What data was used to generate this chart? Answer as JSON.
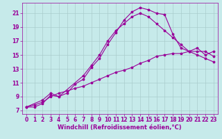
{
  "xlabel": "Windchill (Refroidissement éolien,°C)",
  "xlim": [
    -0.5,
    23.5
  ],
  "ylim": [
    6.5,
    22.5
  ],
  "xticks": [
    0,
    1,
    2,
    3,
    4,
    5,
    6,
    7,
    8,
    9,
    10,
    11,
    12,
    13,
    14,
    15,
    16,
    17,
    18,
    19,
    20,
    21,
    22,
    23
  ],
  "yticks": [
    7,
    9,
    11,
    13,
    15,
    17,
    19,
    21
  ],
  "background_color": "#c6eaea",
  "line_color": "#990099",
  "grid_color": "#aacccc",
  "line1_x": [
    0,
    1,
    2,
    3,
    4,
    5,
    6,
    7,
    8,
    9,
    10,
    11,
    12,
    13,
    14,
    15,
    16,
    17,
    18,
    19,
    20,
    21,
    22,
    23
  ],
  "line1_y": [
    7.5,
    7.5,
    8.0,
    9.2,
    9.0,
    9.5,
    10.8,
    11.5,
    13.2,
    14.5,
    16.5,
    18.2,
    20.0,
    21.2,
    21.8,
    21.5,
    21.0,
    20.8,
    18.0,
    16.0,
    15.5,
    16.0,
    15.0,
    15.5
  ],
  "line2_x": [
    0,
    2,
    3,
    4,
    7,
    8,
    9,
    10,
    11,
    12,
    13,
    14,
    15,
    16,
    17,
    18,
    19,
    20,
    21,
    22,
    23
  ],
  "line2_y": [
    7.5,
    8.5,
    9.5,
    9.0,
    12.0,
    13.5,
    15.0,
    17.0,
    18.5,
    19.5,
    20.5,
    21.0,
    20.5,
    19.5,
    18.5,
    17.5,
    16.5,
    15.5,
    15.0,
    14.5,
    14.0
  ],
  "line3_x": [
    0,
    1,
    2,
    3,
    4,
    5,
    6,
    7,
    8,
    9,
    10,
    11,
    12,
    13,
    14,
    15,
    16,
    17,
    18,
    19,
    20,
    21,
    22,
    23
  ],
  "line3_y": [
    7.5,
    7.8,
    8.2,
    9.0,
    9.5,
    9.8,
    10.2,
    10.5,
    11.0,
    11.5,
    12.0,
    12.5,
    12.8,
    13.2,
    13.8,
    14.2,
    14.8,
    15.0,
    15.2,
    15.2,
    15.5,
    15.5,
    15.5,
    14.8
  ],
  "tick_fontsize": 5.5,
  "label_fontsize": 6.0,
  "marker_size": 2.5,
  "line_width": 0.8
}
